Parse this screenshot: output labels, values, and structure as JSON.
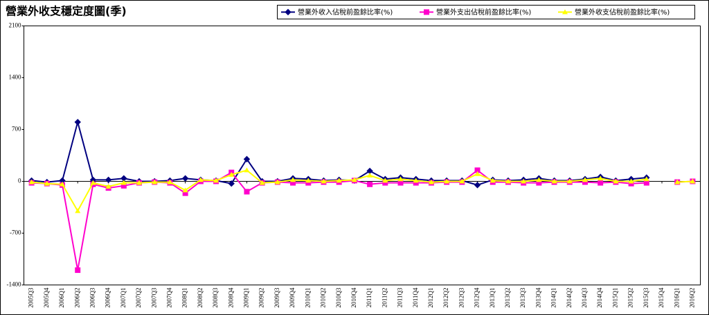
{
  "chart_data": {
    "type": "line",
    "title": "營業外收支穩定度圖(季)",
    "categories": [
      "2005Q3",
      "2005Q4",
      "2006Q1",
      "2006Q2",
      "2006Q3",
      "2006Q4",
      "2007Q1",
      "2007Q2",
      "2007Q3",
      "2007Q4",
      "2008Q1",
      "2008Q2",
      "2008Q3",
      "2008Q4",
      "2009Q1",
      "2009Q2",
      "2009Q3",
      "2009Q4",
      "2010Q1",
      "2010Q2",
      "2010Q3",
      "2010Q4",
      "2011Q1",
      "2011Q2",
      "2011Q3",
      "2011Q4",
      "2012Q1",
      "2012Q2",
      "2012Q3",
      "2012Q4",
      "2013Q1",
      "2013Q2",
      "2013Q3",
      "2013Q4",
      "2014Q1",
      "2014Q2",
      "2014Q3",
      "2014Q4",
      "2015Q1",
      "2015Q2",
      "2015Q3",
      "2015Q4",
      "2016Q1",
      "2016Q2"
    ],
    "series": [
      {
        "name": "營業外收入佔稅前盈餘比率(%)",
        "color": "#000080",
        "marker": "diamond",
        "values": [
          10,
          -10,
          10,
          800,
          20,
          20,
          40,
          0,
          0,
          10,
          40,
          20,
          10,
          -30,
          300,
          0,
          0,
          40,
          30,
          10,
          20,
          10,
          140,
          30,
          50,
          30,
          10,
          10,
          10,
          -50,
          20,
          10,
          20,
          40,
          10,
          10,
          30,
          60,
          10,
          30,
          50,
          null,
          null,
          null
        ]
      },
      {
        "name": "營業外支出佔稅前盈餘比率(%)",
        "color": "#ff00cc",
        "marker": "square",
        "values": [
          -20,
          -30,
          -50,
          -1200,
          -40,
          -90,
          -60,
          -20,
          -10,
          -20,
          -160,
          0,
          0,
          120,
          -140,
          -20,
          -10,
          -20,
          -20,
          -10,
          -10,
          10,
          -40,
          -20,
          -20,
          -20,
          -20,
          -10,
          -10,
          150,
          -10,
          -10,
          -20,
          -20,
          -10,
          -10,
          -10,
          -20,
          -10,
          -30,
          -20,
          null,
          -10,
          0
        ]
      },
      {
        "name": "營業外收支佔稅前盈餘比率(%)",
        "color": "#ffff00",
        "marker": "triangle",
        "values": [
          -10,
          -30,
          -40,
          -400,
          -20,
          -70,
          -20,
          -20,
          -10,
          -10,
          -120,
          20,
          10,
          90,
          150,
          -20,
          -10,
          20,
          10,
          0,
          10,
          20,
          80,
          10,
          30,
          10,
          -10,
          0,
          0,
          100,
          10,
          0,
          0,
          20,
          0,
          0,
          20,
          40,
          0,
          0,
          30,
          null,
          -10,
          0
        ]
      }
    ],
    "ylim": [
      -1400,
      2100
    ],
    "yticks": [
      -1400,
      -700,
      0,
      700,
      1400,
      2100
    ]
  }
}
